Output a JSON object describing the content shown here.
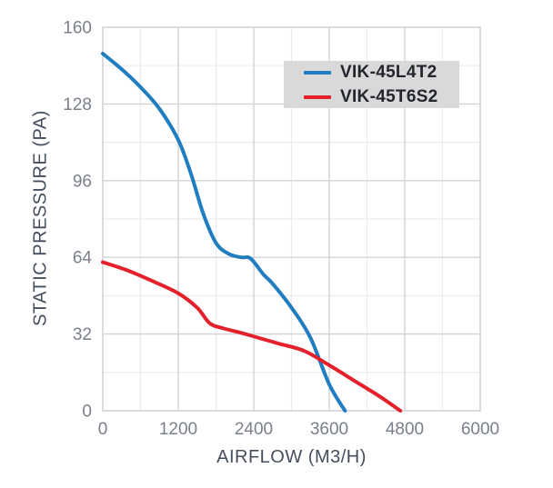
{
  "chart_data": {
    "type": "line",
    "title": "",
    "xlabel": "AIRFLOW (M3/H)",
    "ylabel": "STATIC PRESSURE (PA)",
    "xlim": [
      0,
      6000
    ],
    "ylim": [
      0,
      160
    ],
    "x_ticks": [
      0,
      1200,
      2400,
      3600,
      4800,
      6000
    ],
    "y_ticks": [
      0,
      32,
      64,
      96,
      128,
      160
    ],
    "x_minor_step": 600,
    "y_minor_step": 16,
    "grid": "major+minor",
    "legend_position": "top-right-inside",
    "series": [
      {
        "name": "VIK-45L4T2",
        "color": "#1f7dc0",
        "points": [
          [
            0,
            149
          ],
          [
            300,
            142.5
          ],
          [
            600,
            135
          ],
          [
            900,
            126
          ],
          [
            1200,
            113
          ],
          [
            1400,
            99
          ],
          [
            1600,
            82
          ],
          [
            1800,
            70
          ],
          [
            2000,
            65.5
          ],
          [
            2200,
            64
          ],
          [
            2350,
            63.5
          ],
          [
            2550,
            57
          ],
          [
            2700,
            53
          ],
          [
            3000,
            43
          ],
          [
            3300,
            30.5
          ],
          [
            3600,
            11
          ],
          [
            3850,
            0
          ]
        ]
      },
      {
        "name": "VIK-45T6S2",
        "color": "#e4202a",
        "points": [
          [
            0,
            62
          ],
          [
            400,
            58.5
          ],
          [
            800,
            54
          ],
          [
            1200,
            49
          ],
          [
            1500,
            43
          ],
          [
            1700,
            36.5
          ],
          [
            1900,
            34.5
          ],
          [
            2200,
            32.5
          ],
          [
            2400,
            31
          ],
          [
            2800,
            28
          ],
          [
            3200,
            25
          ],
          [
            3600,
            19
          ],
          [
            4000,
            12.5
          ],
          [
            4400,
            6
          ],
          [
            4730,
            0
          ]
        ]
      }
    ]
  },
  "colors": {
    "background": "#ffffff",
    "grid_major": "#d3d3d6",
    "grid_minor": "#ececee",
    "frame": "#d3d3d6",
    "tick_label": "#7a808a",
    "axis_title": "#454e5e",
    "legend_bg": "#d9d9d9",
    "legend_text": "#22252d"
  }
}
